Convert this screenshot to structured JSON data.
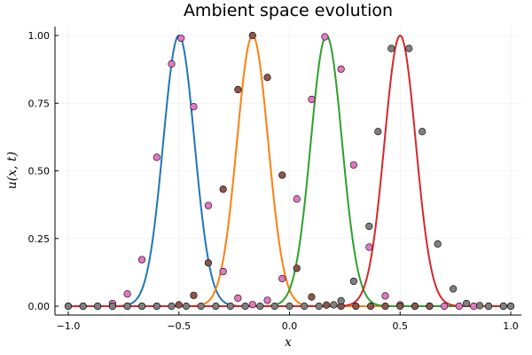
{
  "chart_data": {
    "type": "line",
    "title": "Ambient space evolution",
    "xlabel": "x",
    "ylabel": "u(x, t)",
    "xlim": [
      -1.0,
      1.0
    ],
    "ylim": [
      0.0,
      1.0
    ],
    "xticks": [
      -1.0,
      -0.5,
      0.0,
      0.5,
      1.0
    ],
    "xtick_labels": [
      "−1.0",
      "−0.5",
      "0.0",
      "0.5",
      "1.0"
    ],
    "yticks": [
      0.0,
      0.25,
      0.5,
      0.75,
      1.0
    ],
    "ytick_labels": [
      "0.00",
      "0.25",
      "0.50",
      "0.75",
      "1.00"
    ],
    "grid": true,
    "series": [
      {
        "kind": "curve",
        "color": "#1f77b4",
        "center": -0.5,
        "width": 0.1
      },
      {
        "kind": "curve",
        "color": "#ff7f0e",
        "center": -0.167,
        "width": 0.1
      },
      {
        "kind": "curve",
        "color": "#2ca02c",
        "center": 0.167,
        "width": 0.1
      },
      {
        "kind": "curve",
        "color": "#d62728",
        "center": 0.5,
        "width": 0.1
      },
      {
        "kind": "points",
        "color": "#e377c2",
        "points": [
          [
            -1.0,
            0.0
          ],
          [
            -0.933,
            0.0
          ],
          [
            -0.867,
            0.0
          ],
          [
            -0.8,
            0.01
          ],
          [
            -0.733,
            0.045
          ],
          [
            -0.667,
            0.172
          ],
          [
            -0.6,
            0.55
          ],
          [
            -0.533,
            0.895
          ],
          [
            -0.49,
            0.99
          ],
          [
            -0.433,
            0.737
          ],
          [
            -0.367,
            0.372
          ],
          [
            -0.3,
            0.128
          ],
          [
            -0.233,
            0.03
          ],
          [
            -0.167,
            0.006
          ],
          [
            -0.1,
            0.022
          ],
          [
            -0.033,
            0.102
          ],
          [
            0.033,
            0.396
          ],
          [
            0.1,
            0.764
          ],
          [
            0.16,
            0.995
          ],
          [
            0.233,
            0.876
          ],
          [
            0.29,
            0.522
          ],
          [
            0.36,
            0.218
          ],
          [
            0.433,
            0.038
          ],
          [
            0.5,
            0.005
          ],
          [
            0.567,
            0.0
          ],
          [
            0.633,
            0.0
          ],
          [
            0.7,
            0.0
          ],
          [
            0.767,
            0.0
          ],
          [
            0.833,
            0.0
          ],
          [
            0.9,
            0.0
          ],
          [
            0.967,
            0.0
          ],
          [
            1.0,
            0.0
          ]
        ]
      },
      {
        "kind": "points",
        "color": "#8c564b",
        "points": [
          [
            -0.8,
            0.0
          ],
          [
            -0.733,
            0.0
          ],
          [
            -0.667,
            0.0
          ],
          [
            -0.6,
            0.0
          ],
          [
            -0.5,
            0.005
          ],
          [
            -0.433,
            0.04
          ],
          [
            -0.367,
            0.16
          ],
          [
            -0.3,
            0.432
          ],
          [
            -0.233,
            0.8
          ],
          [
            -0.167,
            1.0
          ],
          [
            -0.1,
            0.845
          ],
          [
            -0.033,
            0.484
          ],
          [
            0.033,
            0.14
          ],
          [
            0.1,
            0.034
          ],
          [
            0.167,
            0.004
          ],
          [
            0.233,
            0.0
          ],
          [
            0.3,
            0.0
          ],
          [
            0.367,
            0.0
          ],
          [
            0.433,
            0.0
          ],
          [
            0.5,
            0.0
          ],
          [
            0.567,
            0.0
          ],
          [
            0.633,
            0.0
          ]
        ]
      },
      {
        "kind": "points",
        "color": "#7f7f7f",
        "points": [
          [
            -1.0,
            0.0
          ],
          [
            -0.933,
            0.0
          ],
          [
            -0.867,
            0.0
          ],
          [
            -0.8,
            0.0
          ],
          [
            -0.733,
            0.0
          ],
          [
            -0.667,
            0.0
          ],
          [
            -0.6,
            0.0
          ],
          [
            -0.533,
            0.0
          ],
          [
            -0.467,
            0.0
          ],
          [
            -0.4,
            0.0
          ],
          [
            -0.333,
            0.0
          ],
          [
            -0.267,
            0.0
          ],
          [
            -0.2,
            0.0
          ],
          [
            -0.133,
            0.0
          ],
          [
            -0.067,
            0.0
          ],
          [
            0.0,
            0.0
          ],
          [
            0.067,
            0.0
          ],
          [
            0.133,
            0.0
          ],
          [
            0.2,
            0.005
          ],
          [
            0.233,
            0.02
          ],
          [
            0.29,
            0.092
          ],
          [
            0.36,
            0.295
          ],
          [
            0.4,
            0.645
          ],
          [
            0.46,
            0.952
          ],
          [
            0.54,
            0.952
          ],
          [
            0.6,
            0.645
          ],
          [
            0.67,
            0.23
          ],
          [
            0.74,
            0.064
          ],
          [
            0.8,
            0.01
          ],
          [
            0.86,
            0.002
          ],
          [
            0.9,
            0.0
          ],
          [
            0.967,
            0.0
          ],
          [
            1.0,
            0.0
          ]
        ]
      }
    ]
  }
}
